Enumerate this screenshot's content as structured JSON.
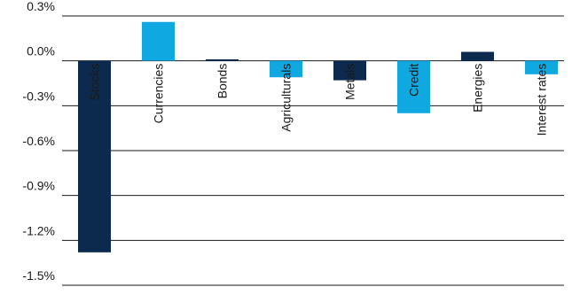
{
  "colors": {
    "dark_navy": "#0c2a4e",
    "light_blue": "#10a8e0",
    "label_dark": "#1a1a1a",
    "label_light": "#ffffff"
  },
  "chart_data": {
    "type": "bar",
    "title": "",
    "xlabel": "",
    "ylabel": "",
    "ylim": [
      -1.5,
      0.3
    ],
    "yticks": [
      0.3,
      0.0,
      -0.3,
      -0.6,
      -0.9,
      -1.2,
      -1.5
    ],
    "ytick_labels": [
      "0.3%",
      "0.0%",
      "-0.3%",
      "-0.6%",
      "-0.9%",
      "-1.2%",
      "-1.5%"
    ],
    "grid": true,
    "categories": [
      "Stocks",
      "Currencies",
      "Bonds",
      "Agriculturals",
      "Metals",
      "Credit",
      "Energies",
      "Interest rates"
    ],
    "values": [
      -1.28,
      0.26,
      0.01,
      -0.11,
      -0.13,
      -0.35,
      0.06,
      -0.09
    ],
    "bar_colors": [
      "#0c2a4e",
      "#10a8e0",
      "#0c2a4e",
      "#10a8e0",
      "#0c2a4e",
      "#10a8e0",
      "#0c2a4e",
      "#10a8e0"
    ],
    "label_colors": [
      "#ffffff",
      "#1a1a1a",
      "#1a1a1a",
      "#1a1a1a",
      "#1a1a1a",
      "#ffffff",
      "#1a1a1a",
      "#1a1a1a"
    ]
  }
}
